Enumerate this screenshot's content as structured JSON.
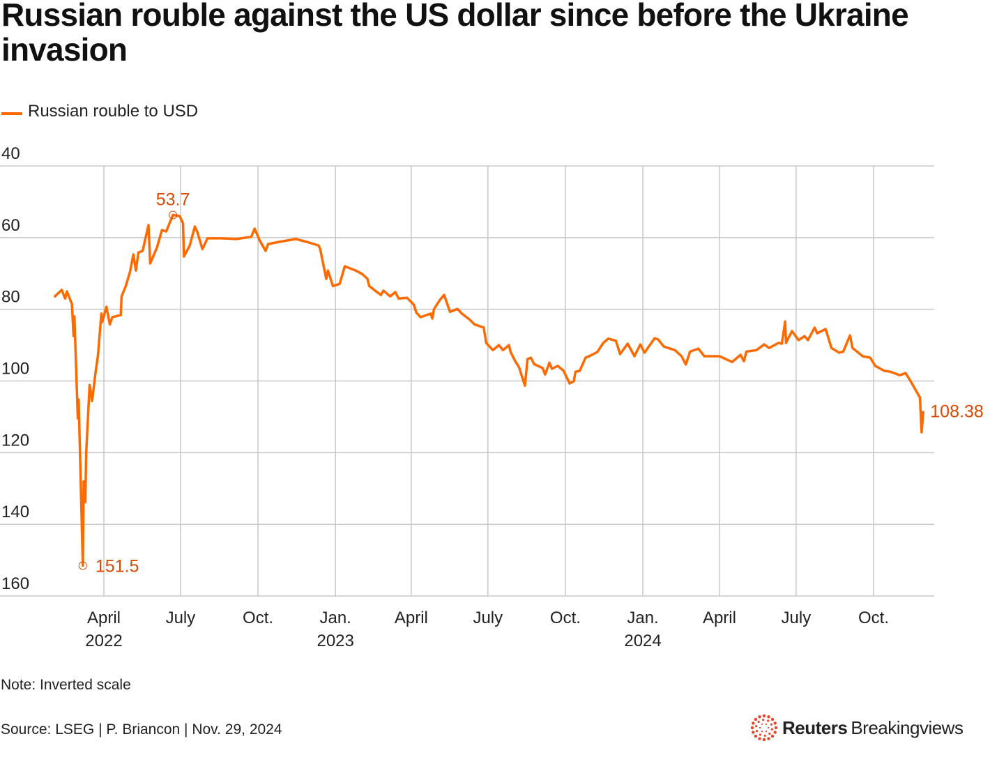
{
  "title": "Russian rouble against the US dollar since before the Ukraine invasion",
  "legend": [
    {
      "label": "Russian rouble to USD",
      "color": "#ff6a00"
    }
  ],
  "note": "Note: Inverted scale",
  "source": "Source: LSEG | P. Briancon | Nov. 29, 2024",
  "logo": {
    "brand": "Reuters",
    "product": "Breakingviews",
    "color": "#e4472a"
  },
  "chart_data": {
    "type": "line",
    "title": "Russian rouble against the US dollar since before the Ukraine invasion",
    "xlabel": "",
    "ylabel": "",
    "y_inverted": true,
    "ylim": [
      40,
      160
    ],
    "yticks": [
      40,
      60,
      80,
      100,
      120,
      140,
      160
    ],
    "xlim": [
      "2022-01-31",
      "2024-11-29"
    ],
    "xticks": [
      {
        "date": "2022-04-01",
        "label": "April",
        "year": "2022"
      },
      {
        "date": "2022-07-01",
        "label": "July",
        "year": ""
      },
      {
        "date": "2022-10-01",
        "label": "Oct.",
        "year": ""
      },
      {
        "date": "2023-01-01",
        "label": "Jan.",
        "year": "2023"
      },
      {
        "date": "2023-04-01",
        "label": "April",
        "year": ""
      },
      {
        "date": "2023-07-01",
        "label": "July",
        "year": ""
      },
      {
        "date": "2023-10-01",
        "label": "Oct.",
        "year": ""
      },
      {
        "date": "2024-01-01",
        "label": "Jan.",
        "year": "2024"
      },
      {
        "date": "2024-04-01",
        "label": "April",
        "year": ""
      },
      {
        "date": "2024-07-01",
        "label": "July",
        "year": ""
      },
      {
        "date": "2024-10-01",
        "label": "Oct.",
        "year": ""
      }
    ],
    "grid": true,
    "legend_position": "top-left",
    "series": [
      {
        "name": "Russian rouble to USD",
        "color": "#ff6a00",
        "points": [
          [
            "2022-02-01",
            76.6
          ],
          [
            "2022-02-10",
            74.6
          ],
          [
            "2022-02-14",
            77.0
          ],
          [
            "2022-02-16",
            75.0
          ],
          [
            "2022-02-22",
            78.5
          ],
          [
            "2022-02-24",
            87.5
          ],
          [
            "2022-02-25",
            82.0
          ],
          [
            "2022-03-01",
            110.4
          ],
          [
            "2022-03-02",
            105.2
          ],
          [
            "2022-03-07",
            151.5
          ],
          [
            "2022-03-08",
            128.0
          ],
          [
            "2022-03-10",
            133.8
          ],
          [
            "2022-03-11",
            120.2
          ],
          [
            "2022-03-15",
            101.1
          ],
          [
            "2022-03-18",
            105.6
          ],
          [
            "2022-03-22",
            97.8
          ],
          [
            "2022-03-25",
            92.9
          ],
          [
            "2022-03-29",
            81.2
          ],
          [
            "2022-03-30",
            83.6
          ],
          [
            "2022-04-04",
            79.3
          ],
          [
            "2022-04-08",
            84.2
          ],
          [
            "2022-04-11",
            82.2
          ],
          [
            "2022-04-21",
            81.6
          ],
          [
            "2022-04-22",
            76.4
          ],
          [
            "2022-04-27",
            73.5
          ],
          [
            "2022-05-02",
            69.6
          ],
          [
            "2022-05-06",
            64.7
          ],
          [
            "2022-05-09",
            69.2
          ],
          [
            "2022-05-12",
            64.2
          ],
          [
            "2022-05-17",
            63.7
          ],
          [
            "2022-05-24",
            56.5
          ],
          [
            "2022-05-26",
            67.2
          ],
          [
            "2022-06-03",
            62.8
          ],
          [
            "2022-06-09",
            57.9
          ],
          [
            "2022-06-14",
            58.3
          ],
          [
            "2022-06-22",
            53.7
          ],
          [
            "2022-06-30",
            54.0
          ],
          [
            "2022-07-04",
            56.0
          ],
          [
            "2022-07-05",
            65.3
          ],
          [
            "2022-07-12",
            62.2
          ],
          [
            "2022-07-18",
            56.9
          ],
          [
            "2022-07-21",
            58.5
          ],
          [
            "2022-07-27",
            63.2
          ],
          [
            "2022-08-02",
            60.2
          ],
          [
            "2022-08-19",
            60.2
          ],
          [
            "2022-09-05",
            60.4
          ],
          [
            "2022-09-23",
            59.8
          ],
          [
            "2022-09-27",
            57.5
          ],
          [
            "2022-10-03",
            60.8
          ],
          [
            "2022-10-10",
            63.7
          ],
          [
            "2022-10-13",
            61.8
          ],
          [
            "2022-10-26",
            61.2
          ],
          [
            "2022-11-15",
            60.4
          ],
          [
            "2022-11-28",
            61.2
          ],
          [
            "2022-12-12",
            62.2
          ],
          [
            "2022-12-14",
            63.3
          ],
          [
            "2022-12-21",
            71.5
          ],
          [
            "2022-12-23",
            69.2
          ],
          [
            "2022-12-29",
            73.5
          ],
          [
            "2023-01-06",
            72.9
          ],
          [
            "2023-01-12",
            68.0
          ],
          [
            "2023-01-25",
            69.2
          ],
          [
            "2023-02-02",
            70.2
          ],
          [
            "2023-02-08",
            71.5
          ],
          [
            "2023-02-10",
            73.5
          ],
          [
            "2023-02-17",
            74.8
          ],
          [
            "2023-02-24",
            76.0
          ],
          [
            "2023-02-27",
            74.8
          ],
          [
            "2023-03-07",
            76.4
          ],
          [
            "2023-03-13",
            75.2
          ],
          [
            "2023-03-17",
            77.0
          ],
          [
            "2023-03-27",
            76.8
          ],
          [
            "2023-04-04",
            78.7
          ],
          [
            "2023-04-07",
            80.9
          ],
          [
            "2023-04-12",
            82.2
          ],
          [
            "2023-04-24",
            81.2
          ],
          [
            "2023-04-26",
            82.6
          ],
          [
            "2023-04-28",
            79.9
          ],
          [
            "2023-05-05",
            77.4
          ],
          [
            "2023-05-10",
            76.0
          ],
          [
            "2023-05-17",
            80.7
          ],
          [
            "2023-05-26",
            79.9
          ],
          [
            "2023-05-31",
            81.2
          ],
          [
            "2023-06-09",
            82.8
          ],
          [
            "2023-06-15",
            84.2
          ],
          [
            "2023-06-26",
            85.1
          ],
          [
            "2023-06-29",
            89.4
          ],
          [
            "2023-07-07",
            91.4
          ],
          [
            "2023-07-14",
            90.0
          ],
          [
            "2023-07-19",
            91.4
          ],
          [
            "2023-07-26",
            90.0
          ],
          [
            "2023-07-28",
            91.9
          ],
          [
            "2023-08-02",
            94.3
          ],
          [
            "2023-08-07",
            96.2
          ],
          [
            "2023-08-14",
            101.3
          ],
          [
            "2023-08-17",
            93.9
          ],
          [
            "2023-08-21",
            93.5
          ],
          [
            "2023-08-25",
            95.3
          ],
          [
            "2023-09-04",
            96.4
          ],
          [
            "2023-09-07",
            98.2
          ],
          [
            "2023-09-12",
            94.9
          ],
          [
            "2023-09-15",
            96.6
          ],
          [
            "2023-09-22",
            95.8
          ],
          [
            "2023-09-29",
            97.2
          ],
          [
            "2023-10-06",
            100.7
          ],
          [
            "2023-10-11",
            100.1
          ],
          [
            "2023-10-13",
            97.4
          ],
          [
            "2023-10-18",
            97.2
          ],
          [
            "2023-10-25",
            93.5
          ],
          [
            "2023-10-31",
            92.9
          ],
          [
            "2023-11-08",
            91.9
          ],
          [
            "2023-11-15",
            89.4
          ],
          [
            "2023-11-21",
            88.2
          ],
          [
            "2023-11-30",
            88.8
          ],
          [
            "2023-12-05",
            92.5
          ],
          [
            "2023-12-14",
            89.6
          ],
          [
            "2023-12-22",
            93.1
          ],
          [
            "2023-12-29",
            89.8
          ],
          [
            "2024-01-03",
            92.1
          ],
          [
            "2024-01-15",
            88.1
          ],
          [
            "2024-01-19",
            88.4
          ],
          [
            "2024-01-26",
            90.4
          ],
          [
            "2024-02-08",
            91.4
          ],
          [
            "2024-02-16",
            93.1
          ],
          [
            "2024-02-21",
            95.4
          ],
          [
            "2024-02-26",
            91.8
          ],
          [
            "2024-03-07",
            91.0
          ],
          [
            "2024-03-14",
            93.1
          ],
          [
            "2024-04-01",
            93.1
          ],
          [
            "2024-04-16",
            94.7
          ],
          [
            "2024-04-26",
            92.7
          ],
          [
            "2024-04-30",
            94.5
          ],
          [
            "2024-05-03",
            91.8
          ],
          [
            "2024-05-15",
            91.4
          ],
          [
            "2024-05-24",
            89.8
          ],
          [
            "2024-05-30",
            90.8
          ],
          [
            "2024-06-10",
            89.4
          ],
          [
            "2024-06-14",
            89.6
          ],
          [
            "2024-06-18",
            83.4
          ],
          [
            "2024-06-19",
            89.4
          ],
          [
            "2024-06-26",
            86.1
          ],
          [
            "2024-07-04",
            88.6
          ],
          [
            "2024-07-11",
            87.5
          ],
          [
            "2024-07-15",
            88.6
          ],
          [
            "2024-07-23",
            85.1
          ],
          [
            "2024-07-26",
            86.7
          ],
          [
            "2024-08-05",
            85.5
          ],
          [
            "2024-08-12",
            90.8
          ],
          [
            "2024-08-21",
            92.1
          ],
          [
            "2024-08-26",
            91.8
          ],
          [
            "2024-09-03",
            87.3
          ],
          [
            "2024-09-06",
            90.8
          ],
          [
            "2024-09-18",
            93.1
          ],
          [
            "2024-09-27",
            93.5
          ],
          [
            "2024-10-03",
            95.8
          ],
          [
            "2024-10-14",
            97.2
          ],
          [
            "2024-10-21",
            97.4
          ],
          [
            "2024-11-01",
            98.4
          ],
          [
            "2024-11-08",
            97.8
          ],
          [
            "2024-11-15",
            100.5
          ],
          [
            "2024-11-25",
            104.6
          ],
          [
            "2024-11-27",
            114.3
          ],
          [
            "2024-11-29",
            108.38
          ]
        ]
      }
    ],
    "annotations": [
      {
        "date": "2022-06-22",
        "value": 53.7,
        "label": "53.7",
        "marker": "circle",
        "position": "above"
      },
      {
        "date": "2022-03-07",
        "value": 151.5,
        "label": "151.5",
        "marker": "circle",
        "position": "right"
      },
      {
        "date": "2024-11-29",
        "value": 108.38,
        "label": "108.38",
        "marker": "none",
        "position": "right"
      }
    ]
  }
}
